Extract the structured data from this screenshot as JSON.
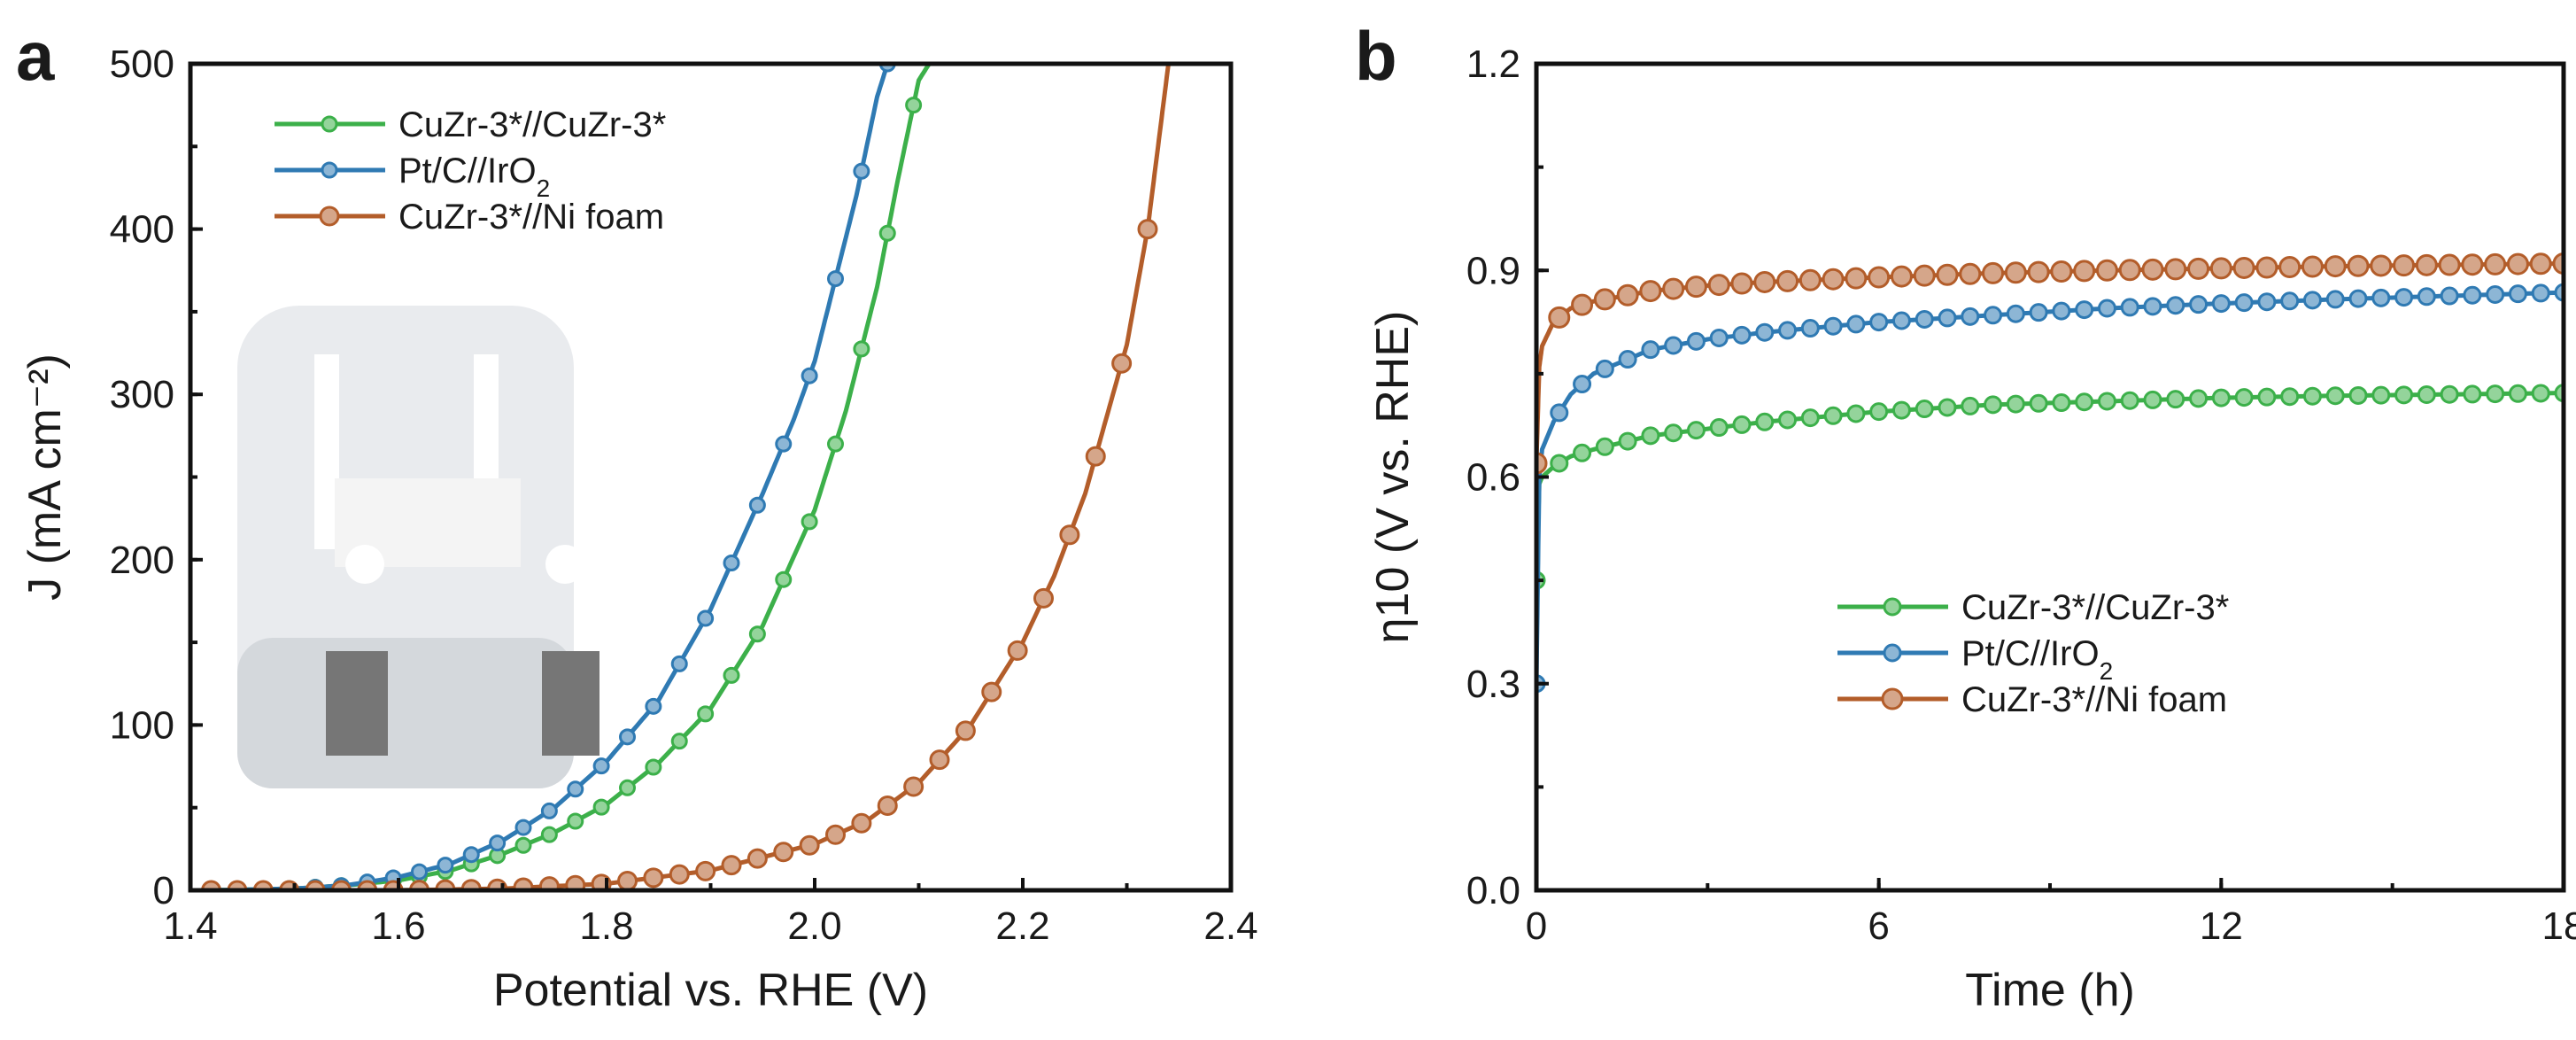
{
  "colors": {
    "green": "#3cb04a",
    "blue": "#2f7ab3",
    "orange": "#b35d2a"
  },
  "chart_data": [
    {
      "type": "line",
      "panel": "a",
      "xlabel": "Potential vs. RHE (V)",
      "ylabel": "J (mA cm⁻²)",
      "xlim": [
        1.4,
        2.4
      ],
      "ylim": [
        0,
        500
      ],
      "xticks": [
        "1.4",
        "1.6",
        "1.8",
        "2.0",
        "2.2",
        "2.4"
      ],
      "yticks": [
        "0",
        "100",
        "200",
        "300",
        "400",
        "500"
      ],
      "legend_position": "top-left",
      "inset": "photo of two-electrode cell in beaker",
      "series": [
        {
          "name": "CuZr-3*//CuZr-3*",
          "color": "green",
          "marker": "small",
          "x": [
            1.42,
            1.5,
            1.55,
            1.6,
            1.65,
            1.7,
            1.75,
            1.8,
            1.85,
            1.9,
            1.95,
            2.0,
            2.03,
            2.06,
            2.08,
            2.1,
            2.11
          ],
          "y": [
            0,
            1,
            3,
            6,
            12,
            22,
            35,
            52,
            77,
            110,
            160,
            230,
            290,
            365,
            430,
            490,
            500
          ]
        },
        {
          "name": "Pt/C//IrO2",
          "color": "blue",
          "marker": "small",
          "x": [
            1.42,
            1.5,
            1.55,
            1.6,
            1.65,
            1.7,
            1.75,
            1.8,
            1.85,
            1.9,
            1.95,
            1.98,
            2.0,
            2.02,
            2.04,
            2.06,
            2.07
          ],
          "y": [
            0,
            1,
            3,
            8,
            16,
            30,
            50,
            78,
            115,
            170,
            240,
            285,
            320,
            370,
            420,
            480,
            500
          ]
        },
        {
          "name": "CuZr-3*//Ni foam",
          "color": "orange",
          "marker": "large",
          "x": [
            1.42,
            1.6,
            1.7,
            1.8,
            1.9,
            2.0,
            2.05,
            2.1,
            2.15,
            2.2,
            2.23,
            2.26,
            2.28,
            2.3,
            2.32,
            2.33,
            2.34
          ],
          "y": [
            0,
            0,
            1,
            4,
            12,
            28,
            42,
            65,
            100,
            150,
            190,
            240,
            285,
            330,
            400,
            450,
            500
          ]
        }
      ]
    },
    {
      "type": "line",
      "panel": "b",
      "xlabel": "Time (h)",
      "ylabel": "η10 (V vs. RHE)",
      "xlim": [
        0,
        18
      ],
      "ylim": [
        0,
        1.2
      ],
      "xticks": [
        "0",
        "6",
        "12",
        "18"
      ],
      "yticks": [
        "0.0",
        "0.3",
        "0.6",
        "0.9",
        "1.2"
      ],
      "legend_position": "center",
      "series": [
        {
          "name": "CuZr-3*//CuZr-3*",
          "color": "green",
          "marker": "small",
          "x": [
            0,
            0.05,
            0.1,
            0.3,
            0.6,
            1,
            2,
            3,
            4,
            6,
            8,
            10,
            12,
            14,
            16,
            18
          ],
          "y": [
            0.45,
            0.59,
            0.6,
            0.615,
            0.63,
            0.64,
            0.66,
            0.67,
            0.68,
            0.695,
            0.705,
            0.71,
            0.715,
            0.718,
            0.72,
            0.722
          ]
        },
        {
          "name": "Pt/C//IrO2",
          "color": "blue",
          "marker": "small",
          "x": [
            0,
            0.05,
            0.1,
            0.3,
            0.6,
            1,
            2,
            3,
            4,
            6,
            8,
            10,
            12,
            14,
            16,
            18
          ],
          "y": [
            0.3,
            0.6,
            0.64,
            0.68,
            0.72,
            0.75,
            0.785,
            0.8,
            0.81,
            0.825,
            0.835,
            0.845,
            0.852,
            0.858,
            0.863,
            0.868
          ]
        },
        {
          "name": "CuZr-3*//Ni foam",
          "color": "orange",
          "marker": "large",
          "x": [
            0,
            0.05,
            0.1,
            0.3,
            0.6,
            1,
            2,
            3,
            4,
            6,
            8,
            10,
            12,
            14,
            16,
            18
          ],
          "y": [
            0.62,
            0.76,
            0.79,
            0.825,
            0.845,
            0.855,
            0.87,
            0.878,
            0.883,
            0.89,
            0.896,
            0.9,
            0.903,
            0.906,
            0.908,
            0.91
          ]
        }
      ]
    }
  ]
}
